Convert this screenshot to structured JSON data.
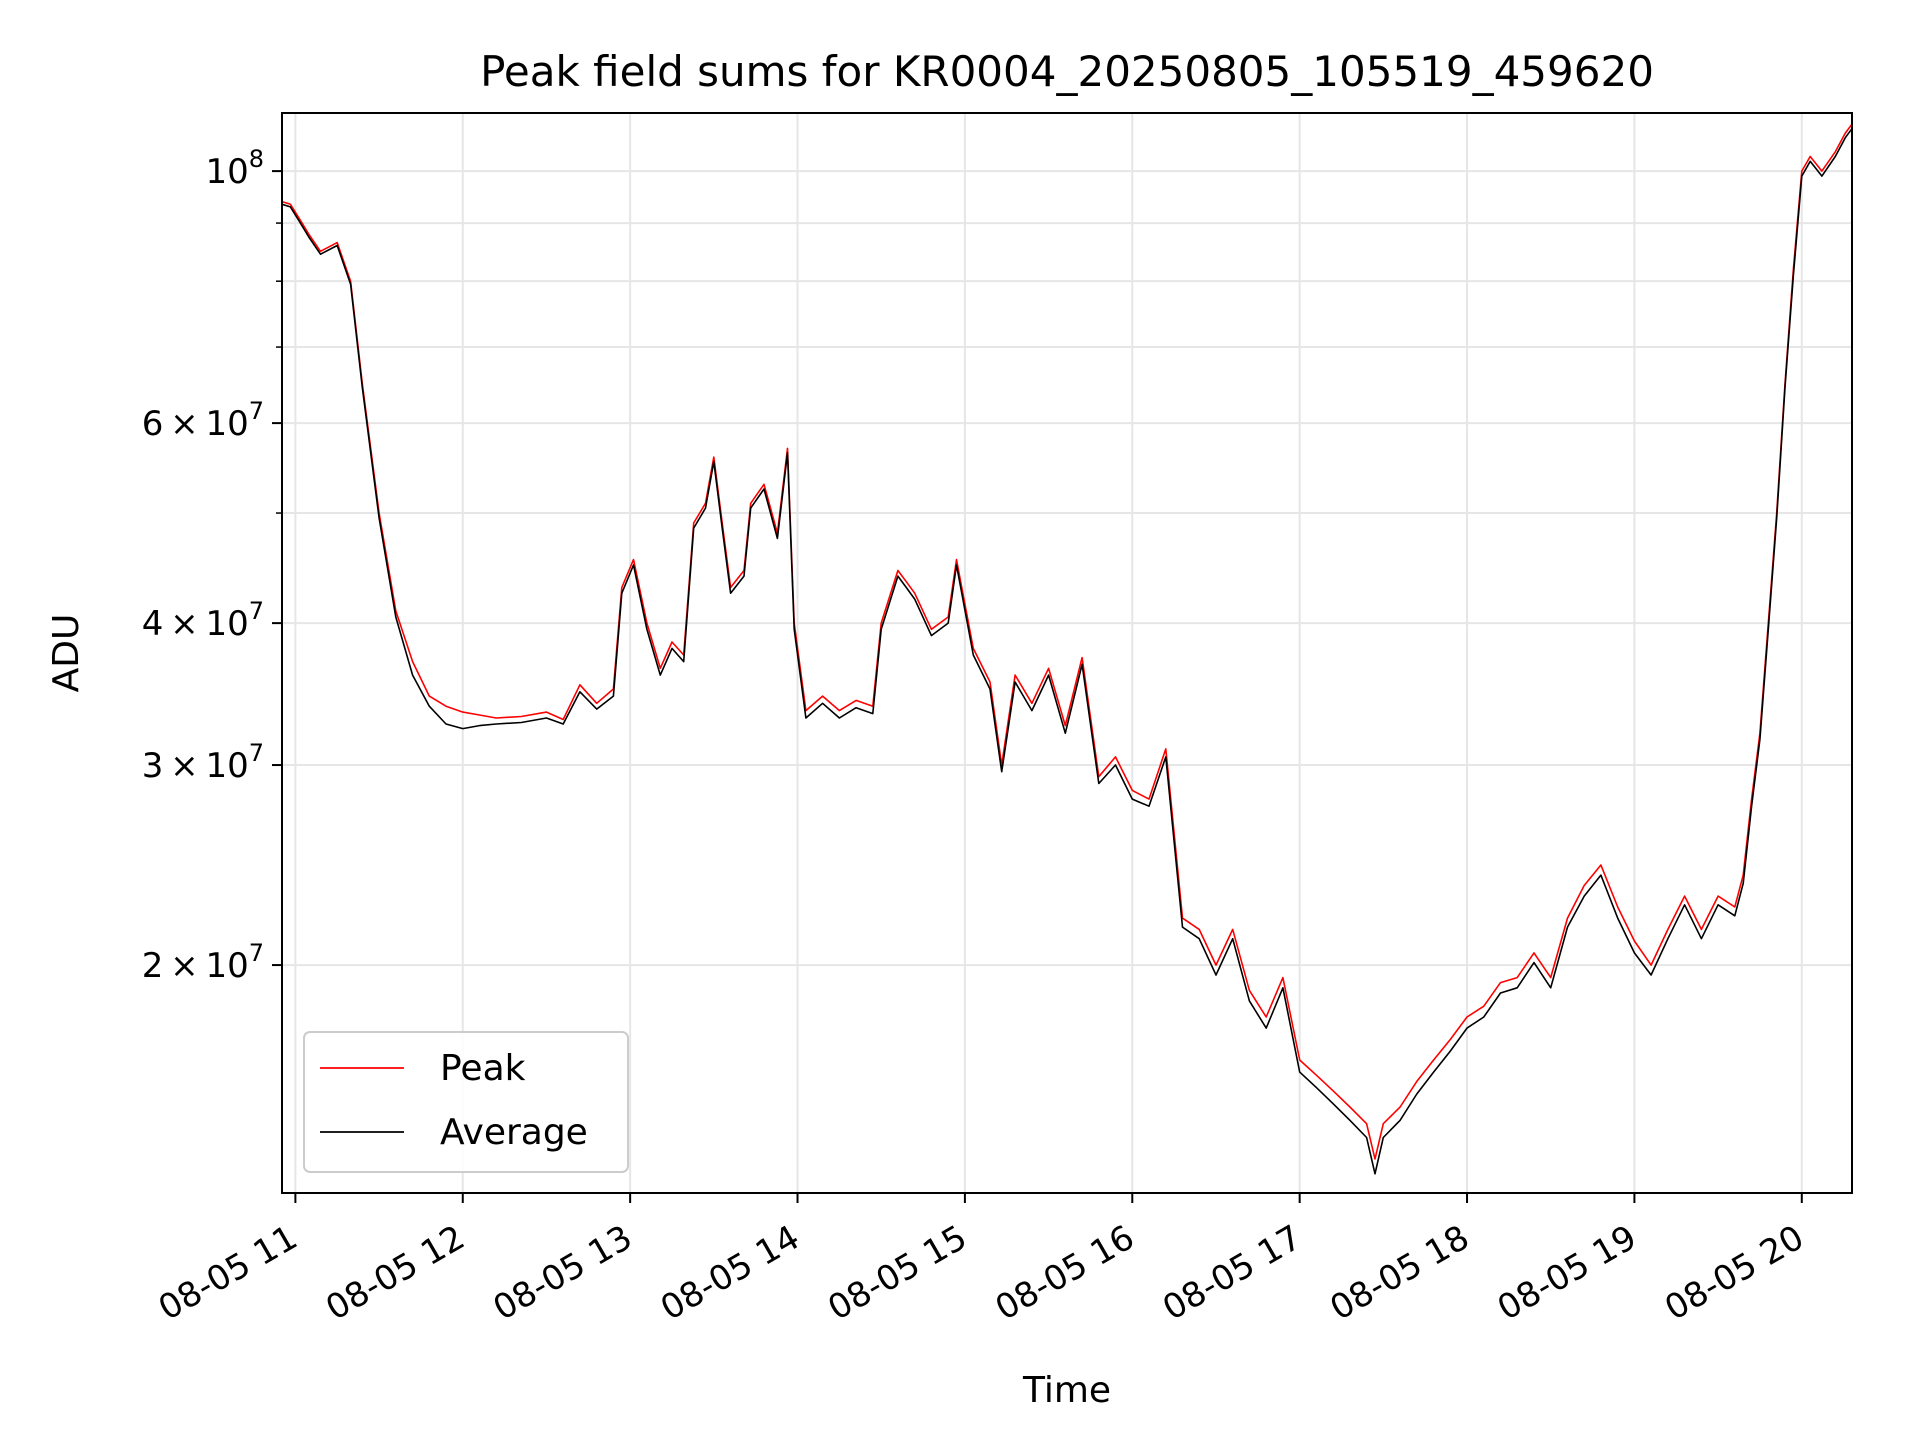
{
  "chart_data": {
    "type": "line",
    "title": "Peak field sums for KR0004_20250805_105519_459620",
    "xlabel": "Time",
    "ylabel": "ADU",
    "yscale": "log",
    "ylim": [
      12600000,
      112500000
    ],
    "xlim_hours": [
      10.92,
      20.3
    ],
    "grid": true,
    "legend_position": "lower-left",
    "x_ticks": [
      "08-05 11",
      "08-05 12",
      "08-05 13",
      "08-05 14",
      "08-05 15",
      "08-05 16",
      "08-05 17",
      "08-05 18",
      "08-05 19",
      "08-05 20"
    ],
    "x_tick_hours": [
      11,
      12,
      13,
      14,
      15,
      16,
      17,
      18,
      19,
      20
    ],
    "y_ticks": [
      {
        "value": 100000000,
        "base": "10",
        "exp": "8",
        "mantissa": ""
      },
      {
        "value": 60000000,
        "base": "10",
        "exp": "7",
        "mantissa": "6"
      },
      {
        "value": 40000000,
        "base": "10",
        "exp": "7",
        "mantissa": "4"
      },
      {
        "value": 30000000,
        "base": "10",
        "exp": "7",
        "mantissa": "3"
      },
      {
        "value": 20000000,
        "base": "10",
        "exp": "7",
        "mantissa": "2"
      }
    ],
    "y_minor_ticks": [
      50000000,
      70000000,
      80000000,
      90000000
    ],
    "series": [
      {
        "name": "Peak",
        "color": "#ff0000",
        "points": [
          [
            10.92,
            94000000
          ],
          [
            10.97,
            93500000
          ],
          [
            11.02,
            91000000
          ],
          [
            11.08,
            88000000
          ],
          [
            11.15,
            85000000
          ],
          [
            11.25,
            86500000
          ],
          [
            11.33,
            80000000
          ],
          [
            11.4,
            65000000
          ],
          [
            11.5,
            50000000
          ],
          [
            11.6,
            41000000
          ],
          [
            11.7,
            37000000
          ],
          [
            11.8,
            34500000
          ],
          [
            11.9,
            33800000
          ],
          [
            12.0,
            33400000
          ],
          [
            12.1,
            33200000
          ],
          [
            12.2,
            33000000
          ],
          [
            12.35,
            33100000
          ],
          [
            12.5,
            33400000
          ],
          [
            12.6,
            32900000
          ],
          [
            12.7,
            35300000
          ],
          [
            12.8,
            34000000
          ],
          [
            12.9,
            35000000
          ],
          [
            12.95,
            43000000
          ],
          [
            13.02,
            45500000
          ],
          [
            13.1,
            40000000
          ],
          [
            13.18,
            36500000
          ],
          [
            13.25,
            38500000
          ],
          [
            13.32,
            37500000
          ],
          [
            13.38,
            49000000
          ],
          [
            13.45,
            51000000
          ],
          [
            13.5,
            56000000
          ],
          [
            13.55,
            49000000
          ],
          [
            13.6,
            43000000
          ],
          [
            13.68,
            44500000
          ],
          [
            13.72,
            51000000
          ],
          [
            13.8,
            53000000
          ],
          [
            13.88,
            48000000
          ],
          [
            13.94,
            57000000
          ],
          [
            13.98,
            40000000
          ],
          [
            14.05,
            33500000
          ],
          [
            14.15,
            34500000
          ],
          [
            14.25,
            33500000
          ],
          [
            14.35,
            34200000
          ],
          [
            14.45,
            33800000
          ],
          [
            14.5,
            40000000
          ],
          [
            14.6,
            44500000
          ],
          [
            14.65,
            43500000
          ],
          [
            14.7,
            42500000
          ],
          [
            14.8,
            39500000
          ],
          [
            14.9,
            40500000
          ],
          [
            14.95,
            45500000
          ],
          [
            15.05,
            38000000
          ],
          [
            15.15,
            35500000
          ],
          [
            15.22,
            30000000
          ],
          [
            15.3,
            36000000
          ],
          [
            15.4,
            34000000
          ],
          [
            15.5,
            36500000
          ],
          [
            15.6,
            32500000
          ],
          [
            15.7,
            37300000
          ],
          [
            15.8,
            29300000
          ],
          [
            15.9,
            30500000
          ],
          [
            16.0,
            28500000
          ],
          [
            16.1,
            28000000
          ],
          [
            16.2,
            31000000
          ],
          [
            16.3,
            22000000
          ],
          [
            16.4,
            21500000
          ],
          [
            16.5,
            20000000
          ],
          [
            16.6,
            21500000
          ],
          [
            16.7,
            19000000
          ],
          [
            16.8,
            18000000
          ],
          [
            16.9,
            19500000
          ],
          [
            17.0,
            16500000
          ],
          [
            17.1,
            16000000
          ],
          [
            17.2,
            15500000
          ],
          [
            17.3,
            15000000
          ],
          [
            17.4,
            14500000
          ],
          [
            17.45,
            13500000
          ],
          [
            17.5,
            14500000
          ],
          [
            17.6,
            15000000
          ],
          [
            17.7,
            15800000
          ],
          [
            17.8,
            16500000
          ],
          [
            17.9,
            17200000
          ],
          [
            18.0,
            18000000
          ],
          [
            18.1,
            18400000
          ],
          [
            18.2,
            19300000
          ],
          [
            18.3,
            19500000
          ],
          [
            18.4,
            20500000
          ],
          [
            18.5,
            19500000
          ],
          [
            18.6,
            22000000
          ],
          [
            18.7,
            23500000
          ],
          [
            18.8,
            24500000
          ],
          [
            18.9,
            22500000
          ],
          [
            19.0,
            21000000
          ],
          [
            19.1,
            20000000
          ],
          [
            19.2,
            21500000
          ],
          [
            19.3,
            23000000
          ],
          [
            19.4,
            21500000
          ],
          [
            19.5,
            23000000
          ],
          [
            19.6,
            22500000
          ],
          [
            19.65,
            24000000
          ],
          [
            19.7,
            28000000
          ],
          [
            19.75,
            32000000
          ],
          [
            19.8,
            40000000
          ],
          [
            19.85,
            50000000
          ],
          [
            19.9,
            65000000
          ],
          [
            19.95,
            82000000
          ],
          [
            20.0,
            100000000
          ],
          [
            20.05,
            103000000
          ],
          [
            20.12,
            100000000
          ],
          [
            20.2,
            104000000
          ],
          [
            20.26,
            108000000
          ],
          [
            20.3,
            110000000
          ]
        ]
      },
      {
        "name": "Average",
        "color": "#000000",
        "points": [
          [
            10.92,
            93500000
          ],
          [
            10.97,
            93000000
          ],
          [
            11.02,
            90500000
          ],
          [
            11.08,
            87500000
          ],
          [
            11.15,
            84500000
          ],
          [
            11.25,
            86000000
          ],
          [
            11.33,
            79500000
          ],
          [
            11.4,
            64500000
          ],
          [
            11.5,
            49500000
          ],
          [
            11.6,
            40500000
          ],
          [
            11.7,
            36000000
          ],
          [
            11.8,
            33800000
          ],
          [
            11.9,
            32600000
          ],
          [
            12.0,
            32300000
          ],
          [
            12.1,
            32500000
          ],
          [
            12.2,
            32600000
          ],
          [
            12.35,
            32700000
          ],
          [
            12.5,
            33000000
          ],
          [
            12.6,
            32600000
          ],
          [
            12.7,
            34800000
          ],
          [
            12.8,
            33600000
          ],
          [
            12.9,
            34500000
          ],
          [
            12.95,
            42500000
          ],
          [
            13.02,
            45000000
          ],
          [
            13.1,
            39500000
          ],
          [
            13.18,
            36000000
          ],
          [
            13.25,
            38000000
          ],
          [
            13.32,
            37000000
          ],
          [
            13.38,
            48500000
          ],
          [
            13.45,
            50500000
          ],
          [
            13.5,
            55500000
          ],
          [
            13.55,
            48500000
          ],
          [
            13.6,
            42500000
          ],
          [
            13.68,
            44000000
          ],
          [
            13.72,
            50500000
          ],
          [
            13.8,
            52500000
          ],
          [
            13.88,
            47500000
          ],
          [
            13.94,
            56500000
          ],
          [
            13.98,
            39500000
          ],
          [
            14.05,
            33000000
          ],
          [
            14.15,
            34000000
          ],
          [
            14.25,
            33000000
          ],
          [
            14.35,
            33700000
          ],
          [
            14.45,
            33300000
          ],
          [
            14.5,
            39500000
          ],
          [
            14.6,
            44000000
          ],
          [
            14.65,
            43000000
          ],
          [
            14.7,
            42000000
          ],
          [
            14.8,
            39000000
          ],
          [
            14.9,
            40000000
          ],
          [
            14.95,
            45000000
          ],
          [
            15.05,
            37500000
          ],
          [
            15.15,
            35000000
          ],
          [
            15.22,
            29600000
          ],
          [
            15.3,
            35500000
          ],
          [
            15.4,
            33500000
          ],
          [
            15.5,
            36000000
          ],
          [
            15.6,
            32000000
          ],
          [
            15.7,
            36800000
          ],
          [
            15.8,
            28900000
          ],
          [
            15.9,
            30000000
          ],
          [
            16.0,
            28000000
          ],
          [
            16.1,
            27600000
          ],
          [
            16.2,
            30500000
          ],
          [
            16.3,
            21600000
          ],
          [
            16.4,
            21100000
          ],
          [
            16.5,
            19600000
          ],
          [
            16.6,
            21100000
          ],
          [
            16.7,
            18600000
          ],
          [
            16.8,
            17600000
          ],
          [
            16.9,
            19100000
          ],
          [
            17.0,
            16100000
          ],
          [
            17.1,
            15600000
          ],
          [
            17.2,
            15100000
          ],
          [
            17.3,
            14600000
          ],
          [
            17.4,
            14100000
          ],
          [
            17.45,
            13100000
          ],
          [
            17.5,
            14100000
          ],
          [
            17.6,
            14600000
          ],
          [
            17.7,
            15400000
          ],
          [
            17.8,
            16100000
          ],
          [
            17.9,
            16800000
          ],
          [
            18.0,
            17600000
          ],
          [
            18.1,
            18000000
          ],
          [
            18.2,
            18900000
          ],
          [
            18.3,
            19100000
          ],
          [
            18.4,
            20100000
          ],
          [
            18.5,
            19100000
          ],
          [
            18.6,
            21600000
          ],
          [
            18.7,
            23000000
          ],
          [
            18.8,
            24000000
          ],
          [
            18.9,
            22000000
          ],
          [
            19.0,
            20500000
          ],
          [
            19.1,
            19600000
          ],
          [
            19.2,
            21100000
          ],
          [
            19.3,
            22600000
          ],
          [
            19.4,
            21100000
          ],
          [
            19.5,
            22600000
          ],
          [
            19.6,
            22100000
          ],
          [
            19.65,
            23600000
          ],
          [
            19.7,
            27600000
          ],
          [
            19.75,
            31600000
          ],
          [
            19.8,
            39500000
          ],
          [
            19.85,
            49500000
          ],
          [
            19.9,
            64500000
          ],
          [
            19.95,
            81000000
          ],
          [
            20.0,
            99000000
          ],
          [
            20.05,
            102000000
          ],
          [
            20.12,
            99000000
          ],
          [
            20.2,
            103000000
          ],
          [
            20.26,
            107000000
          ],
          [
            20.3,
            109000000
          ]
        ]
      }
    ]
  }
}
